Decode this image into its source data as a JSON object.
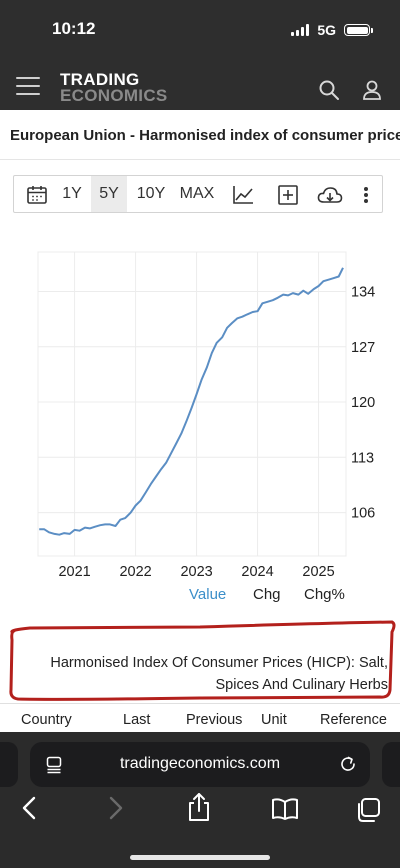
{
  "status": {
    "time": "10:12",
    "network": "5G"
  },
  "header": {
    "logo_line1": "TRADING",
    "logo_line2": "ECONOMICS",
    "menu_icon": "hamburger-icon",
    "search_icon": "search-icon",
    "user_icon": "user-icon"
  },
  "page": {
    "title": "European Union - Harmonised index of consumer prices (HICP)"
  },
  "toolbar": {
    "calendar_icon": "calendar-icon",
    "ranges": [
      "1Y",
      "5Y",
      "10Y",
      "MAX"
    ],
    "active_range": "5Y",
    "chart_type_icon": "line-chart-icon",
    "add_icon": "plus-box-icon",
    "download_icon": "cloud-download-icon",
    "more_icon": "more-vertical-icon"
  },
  "chart_data": {
    "type": "line",
    "x_tick_labels": [
      "2021",
      "2022",
      "2023",
      "2024",
      "2025"
    ],
    "y_tick_labels": [
      "106",
      "113",
      "120",
      "127",
      "134"
    ],
    "ylim": [
      100.5,
      139
    ],
    "xlim": [
      2020.4,
      2025.45
    ],
    "grid": "vertical and horizontal, light",
    "line_color": "#5b8ec4",
    "series": [
      {
        "x": [
          2020.42,
          2020.5,
          2020.58,
          2020.67,
          2020.75,
          2020.83,
          2020.92,
          2021.0,
          2021.08,
          2021.17,
          2021.25,
          2021.33,
          2021.42,
          2021.5,
          2021.58,
          2021.67,
          2021.75,
          2021.83,
          2021.92,
          2022.0,
          2022.08,
          2022.17,
          2022.25,
          2022.33,
          2022.42,
          2022.5,
          2022.58,
          2022.67,
          2022.75,
          2022.83,
          2022.92,
          2023.0,
          2023.08,
          2023.17,
          2023.25,
          2023.33,
          2023.42,
          2023.5,
          2023.58,
          2023.67,
          2023.75,
          2023.83,
          2023.92,
          2024.0,
          2024.08,
          2024.17,
          2024.25,
          2024.33,
          2024.42,
          2024.5,
          2024.58,
          2024.67,
          2024.75,
          2024.83,
          2024.92,
          2025.0,
          2025.08,
          2025.17,
          2025.25,
          2025.33,
          2025.4
        ],
        "values": [
          103.9,
          103.9,
          103.5,
          103.3,
          103.2,
          103.4,
          103.3,
          103.8,
          103.7,
          104.1,
          104.0,
          104.2,
          104.4,
          104.5,
          104.5,
          104.3,
          105.1,
          105.3,
          106.0,
          106.9,
          107.5,
          108.6,
          109.6,
          110.5,
          111.5,
          112.3,
          113.5,
          114.8,
          116.0,
          117.5,
          119.3,
          121.0,
          122.8,
          124.4,
          126.2,
          127.5,
          128.2,
          129.4,
          130.0,
          130.6,
          130.8,
          131.1,
          131.4,
          131.5,
          132.5,
          132.7,
          132.9,
          133.2,
          133.6,
          133.5,
          133.8,
          133.6,
          134.1,
          133.7,
          134.3,
          134.7,
          135.3,
          135.5,
          135.7,
          135.9,
          137.0
        ]
      }
    ]
  },
  "value_tabs": {
    "value": "Value",
    "chg": "Chg",
    "chg_pct": "Chg%",
    "active_color": "#3c8fc9"
  },
  "description": {
    "line1": "Harmonised Index Of Consumer Prices (HICP): Salt,",
    "line2": "Spices And Culinary Herbs",
    "highlight_color": "#b3201c"
  },
  "table": {
    "headers": [
      "Country",
      "Last",
      "Previous",
      "Unit",
      "Reference"
    ]
  },
  "browser": {
    "url": "tradingeconomics.com",
    "page_icon": "page-settings-icon",
    "reload_icon": "reload-icon",
    "back_icon": "back-icon",
    "forward_icon": "forward-icon",
    "share_icon": "share-icon",
    "bookmarks_icon": "bookmarks-icon",
    "tabs_icon": "tabs-icon"
  }
}
